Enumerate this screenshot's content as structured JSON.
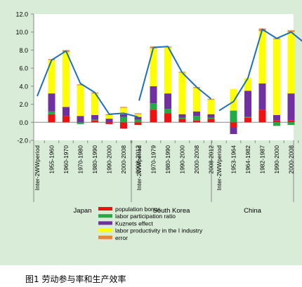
{
  "chart_data": {
    "type": "bar",
    "stacked": true,
    "ylim": [
      -2.0,
      12.0
    ],
    "y_ticks": [
      "12.0",
      "10.0",
      "8.0",
      "6.0",
      "4.0",
      "2.0",
      "0.0",
      "-2.0"
    ],
    "y_tick_values": [
      12,
      10,
      8,
      6,
      4,
      2,
      0,
      -2
    ],
    "grid": false,
    "legend_placement": "bottom-center",
    "groups": [
      {
        "name": "Japan",
        "categories": [
          "Inter-2WWperiod",
          "1955-1960",
          "1960-1970",
          "1970-1980",
          "1980-1990",
          "1990-2000",
          "2000-2008",
          "2008-2012"
        ]
      },
      {
        "name": "South Korea",
        "categories": [
          "Inter-2WWperiod",
          "1970-1979",
          "1980-1990",
          "1990-2000",
          "2000-2008",
          "2008-2012"
        ]
      },
      {
        "name": "China",
        "categories": [
          "Inter-2WWperiod",
          "1953-1964",
          "1964-1982",
          "1982-1987",
          "1990-2000",
          "2000-2008",
          "2008-2012"
        ]
      }
    ],
    "series": [
      {
        "name": "population bonus",
        "color": "#ee1111",
        "values": [
          [
            null,
            0.9,
            0.7,
            0.0,
            0.2,
            -0.2,
            -0.7,
            -0.3
          ],
          [
            null,
            1.4,
            1.0,
            0.4,
            0.2,
            0.4
          ],
          [
            null,
            -0.6,
            0.5,
            1.4,
            0.2,
            0.2,
            0.2
          ]
        ]
      },
      {
        "name": "labor participation ratio",
        "color": "#22aa44",
        "values": [
          [
            null,
            0.3,
            0.0,
            -0.2,
            0.1,
            0.0,
            0.6,
            0.3
          ],
          [
            null,
            0.7,
            0.5,
            0.1,
            0.5,
            0.1
          ],
          [
            null,
            1.3,
            0.1,
            0.0,
            -0.4,
            -0.3,
            -0.5
          ]
        ]
      },
      {
        "name": "Kuznets effect",
        "color": "#7030a0",
        "values": [
          [
            null,
            2.0,
            1.0,
            0.7,
            0.5,
            0.4,
            0.3,
            0.3
          ],
          [
            null,
            1.9,
            1.7,
            0.4,
            0.5,
            0.4
          ],
          [
            null,
            -0.7,
            2.9,
            2.9,
            0.6,
            3.0,
            3.1
          ]
        ]
      },
      {
        "name": "labor productivity in the I industry",
        "color": "#ffff00",
        "values": [
          [
            null,
            3.7,
            6.1,
            3.4,
            2.4,
            0.4,
            0.7,
            0.3
          ],
          [
            null,
            4.2,
            5.1,
            4.6,
            2.6,
            1.6
          ],
          [
            null,
            2.4,
            1.4,
            5.8,
            8.4,
            6.8,
            5.4
          ]
        ]
      },
      {
        "name": "error",
        "color": "#e2883a",
        "values": [
          [
            null,
            0.1,
            0.2,
            0.1,
            0.1,
            0.1,
            0.1,
            0.1
          ],
          [
            null,
            0.2,
            0.1,
            0.1,
            0.1,
            0.1
          ],
          [
            null,
            0.0,
            0.0,
            0.3,
            0.1,
            0.2,
            0.2
          ]
        ]
      }
    ],
    "total_line": {
      "color": "#1f6fc0",
      "values": [
        [
          2.9,
          6.9,
          7.9,
          4.3,
          3.3,
          0.9,
          1.0,
          0.6
        ],
        [
          2.4,
          8.3,
          8.4,
          5.5,
          3.9,
          2.6
        ],
        [
          1.3,
          2.3,
          4.9,
          10.3,
          9.3,
          10.0,
          8.7
        ]
      ]
    }
  },
  "caption": "图1 劳动参与率和生产效率"
}
